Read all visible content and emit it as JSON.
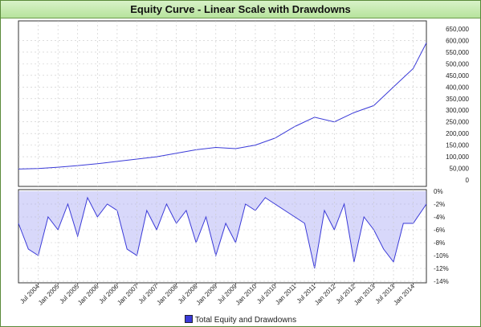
{
  "title": "Equity Curve - Linear Scale with Drawdowns",
  "legend": {
    "label": "Total Equity and Drawdowns",
    "color": "#3a3ad8"
  },
  "colors": {
    "line": "#3a3ad8",
    "grid": "#c8c8c8",
    "header_bg": "#b7e39d"
  },
  "chart_data": [
    {
      "type": "line",
      "title": "Equity Curve - Linear Scale with Drawdowns",
      "series": [
        {
          "name": "Total Equity and Drawdowns",
          "x": [
            "2004-01",
            "2004-07",
            "2005-01",
            "2005-07",
            "2006-01",
            "2006-07",
            "2007-01",
            "2007-07",
            "2008-01",
            "2008-07",
            "2009-01",
            "2009-07",
            "2010-01",
            "2010-07",
            "2011-01",
            "2011-07",
            "2012-01",
            "2012-07",
            "2013-01",
            "2013-07",
            "2014-01",
            "2014-05"
          ],
          "values": [
            47000,
            49000,
            55000,
            62000,
            70000,
            80000,
            90000,
            100000,
            115000,
            130000,
            140000,
            135000,
            150000,
            180000,
            230000,
            270000,
            250000,
            290000,
            320000,
            400000,
            480000,
            590000
          ]
        }
      ],
      "ylim": [
        0,
        650000
      ],
      "yticks": [
        "650,000",
        "600,000",
        "550,000",
        "500,000",
        "450,000",
        "400,000",
        "350,000",
        "300,000",
        "250,000",
        "200,000",
        "150,000",
        "100,000",
        "50,000",
        "0"
      ],
      "grid": true
    },
    {
      "type": "area",
      "series": [
        {
          "name": "Total Equity and Drawdowns",
          "x": [
            "2004-01",
            "2004-04",
            "2004-07",
            "2004-10",
            "2005-01",
            "2005-04",
            "2005-07",
            "2005-10",
            "2006-01",
            "2006-04",
            "2006-07",
            "2006-10",
            "2007-01",
            "2007-04",
            "2007-07",
            "2007-10",
            "2008-01",
            "2008-04",
            "2008-07",
            "2008-10",
            "2009-01",
            "2009-04",
            "2009-07",
            "2009-10",
            "2010-01",
            "2010-04",
            "2010-07",
            "2010-10",
            "2011-01",
            "2011-04",
            "2011-07",
            "2011-10",
            "2012-01",
            "2012-04",
            "2012-07",
            "2012-10",
            "2013-01",
            "2013-04",
            "2013-07",
            "2013-10",
            "2014-01",
            "2014-05"
          ],
          "values": [
            -5,
            -9,
            -10,
            -4,
            -6,
            -2,
            -7,
            -1,
            -4,
            -2,
            -3,
            -9,
            -10,
            -3,
            -6,
            -2,
            -5,
            -3,
            -8,
            -4,
            -10,
            -5,
            -8,
            -2,
            -3,
            -1,
            -2,
            -3,
            -4,
            -5,
            -12,
            -3,
            -6,
            -2,
            -11,
            -4,
            -6,
            -9,
            -11,
            -5,
            -5,
            -2
          ]
        }
      ],
      "ylim": [
        -14,
        0
      ],
      "yticks": [
        "0%",
        "-2%",
        "-4%",
        "-6%",
        "-8%",
        "-10%",
        "-12%",
        "-14%"
      ],
      "xticks": [
        "Jul 2004",
        "Jan 2005",
        "Jul 2005",
        "Jan 2006",
        "Jul 2006",
        "Jan 2007",
        "Jul 2007",
        "Jan 2008",
        "Jul 2008",
        "Jan 2009",
        "Jul 2009",
        "Jan 2010",
        "Jul 2010",
        "Jan 2011",
        "Jul 2011",
        "Jan 2012",
        "Jul 2012",
        "Jan 2013",
        "Jul 2013",
        "Jan 2014"
      ],
      "grid": true
    }
  ]
}
